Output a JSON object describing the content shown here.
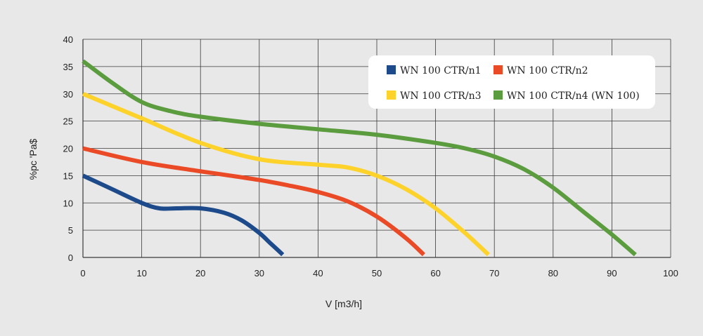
{
  "chart_data": {
    "type": "line",
    "xlabel": "V [m3/h]",
    "ylabel": "%pc 'Pa$",
    "xlim": [
      0,
      100
    ],
    "ylim": [
      0,
      40
    ],
    "x_ticks": [
      "0",
      "10",
      "20",
      "30",
      "40",
      "50",
      "60",
      "70",
      "80",
      "90",
      "100"
    ],
    "y_ticks": [
      "0",
      "5",
      "10",
      "15",
      "20",
      "25",
      "30",
      "35",
      "40"
    ],
    "grid": true,
    "legend_position": "top-right",
    "series": [
      {
        "name": "WN 100 CTR/n1",
        "color": "#1c4a8a",
        "x": [
          0,
          5,
          10,
          13,
          16,
          20,
          24,
          27,
          30,
          32,
          34
        ],
        "y": [
          15,
          12.5,
          10,
          9,
          9,
          9,
          8.2,
          6.8,
          4.5,
          2.5,
          0.5
        ]
      },
      {
        "name": "WN 100 CTR/n2",
        "color": "#ea4a25",
        "x": [
          0,
          10,
          20,
          30,
          35,
          40,
          45,
          50,
          55,
          58
        ],
        "y": [
          20,
          17.5,
          15.8,
          14.2,
          13.2,
          12,
          10.3,
          7.5,
          3.5,
          0.5
        ]
      },
      {
        "name": "WN 100 CTR/n3",
        "color": "#fdd22a",
        "x": [
          0,
          10,
          20,
          30,
          40,
          45,
          50,
          55,
          60,
          65,
          69
        ],
        "y": [
          30,
          25.5,
          21,
          18,
          17,
          16.5,
          15,
          12.5,
          9,
          4.5,
          0.5
        ]
      },
      {
        "name": "WN 100 CTR/n4 (WN 100)",
        "color": "#5a9c3e",
        "x": [
          0,
          5,
          10,
          15,
          20,
          30,
          40,
          50,
          60,
          65,
          70,
          75,
          80,
          85,
          90,
          94
        ],
        "y": [
          36,
          32,
          28.5,
          26.8,
          25.8,
          24.5,
          23.5,
          22.5,
          21,
          20,
          18.5,
          16.2,
          12.8,
          8.5,
          4.2,
          0.5
        ]
      }
    ]
  }
}
